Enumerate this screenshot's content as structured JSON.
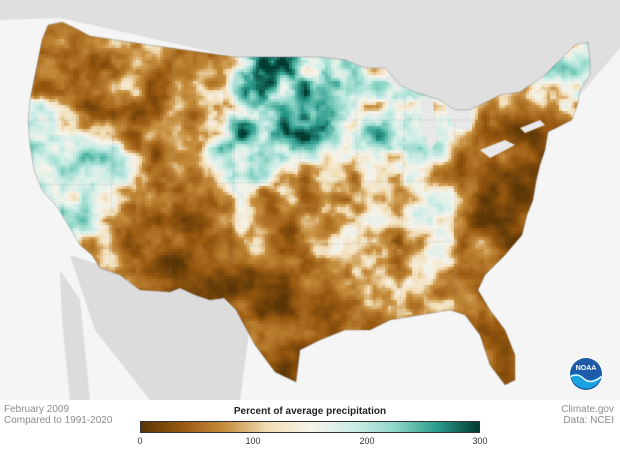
{
  "map": {
    "legend_title": "Percent of average precipitation",
    "legend_ticks": [
      "0",
      "100",
      "200",
      "300"
    ],
    "legend_colors": [
      "#5a3506",
      "#9a5a10",
      "#c89040",
      "#f1ddb5",
      "#f7f3ea",
      "#cfeee8",
      "#8fd6c8",
      "#2c9c8c",
      "#003b30"
    ],
    "date_line": "February 2009",
    "comparison_line": "Compared to 1991-2020",
    "credit_line": "Climate.gov",
    "data_source_line": "Data: NCEI",
    "logo_text": "NOAA"
  }
}
